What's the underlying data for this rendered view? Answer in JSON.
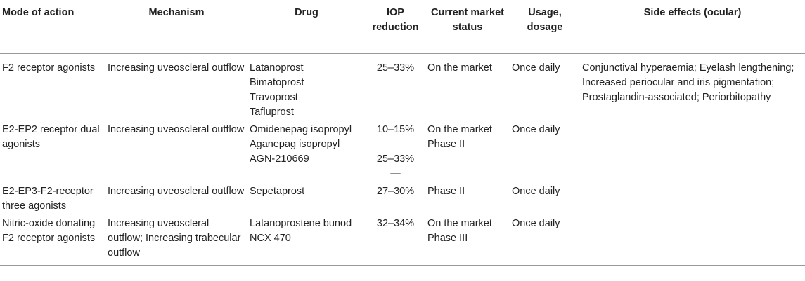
{
  "table": {
    "header": [
      "Mode of action",
      "Mechanism",
      "Drug",
      "IOP reduction",
      "Current market status",
      "Usage, dosage",
      "Side effects (ocular)"
    ],
    "rows": [
      [
        [
          "F2 receptor agonists"
        ],
        [
          "Increasing uveoscleral outflow"
        ],
        [
          "Latanoprost",
          "Bimatoprost",
          "Travoprost",
          "Tafluprost"
        ],
        [
          "25–33%"
        ],
        [
          "On the market"
        ],
        [
          "Once daily"
        ],
        [
          "Conjunctival hyperaemia; Eyelash lengthening; Increased periocular and iris pigmentation; Prostaglandin-associated; Periorbitopathy"
        ]
      ],
      [
        [
          "E2-EP2 receptor dual agonists"
        ],
        [
          "Increasing uveoscleral outflow"
        ],
        [
          "Omidenepag isopropyl",
          "Aganepag isopropyl",
          "AGN-210669"
        ],
        [
          "10–15%",
          "25–33%",
          "—"
        ],
        [
          "On the market",
          "Phase II"
        ],
        [
          "Once daily"
        ],
        []
      ],
      [
        [
          "E2-EP3-F2-receptor three agonists"
        ],
        [
          "Increasing uveoscleral outflow"
        ],
        [
          "Sepetaprost"
        ],
        [
          "27–30%"
        ],
        [
          "Phase II"
        ],
        [
          "Once daily"
        ],
        []
      ],
      [
        [
          "Nitric-oxide donating F2 receptor agonists"
        ],
        [
          "Increasing uveoscleral outflow; Increasing trabecular outflow"
        ],
        [
          "Latanoprostene bunod NCX 470"
        ],
        [
          "32–34%"
        ],
        [
          "On the market",
          "Phase III"
        ],
        [
          "Once daily"
        ],
        []
      ]
    ]
  }
}
